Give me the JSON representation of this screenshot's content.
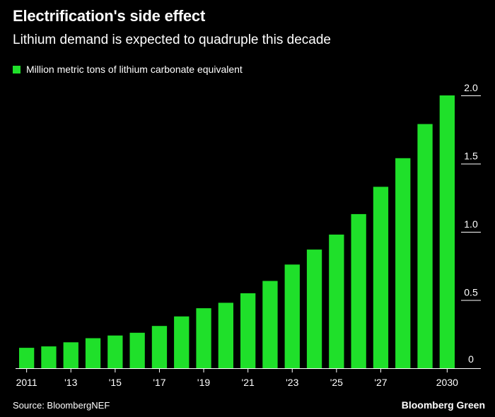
{
  "header": {
    "title": "Electrification's side effect",
    "subtitle": "Lithium demand is expected to quadruple this decade"
  },
  "footer": {
    "source": "Source: BloombergNEF",
    "brand": "Bloomberg Green"
  },
  "colors": {
    "bar": "#1fe02a",
    "background": "#000000",
    "text": "#ffffff"
  },
  "chart_data": {
    "type": "bar",
    "title": "Electrification's side effect",
    "subtitle": "Lithium demand is expected to quadruple this decade",
    "categories": [
      "2011",
      "2012",
      "2013",
      "2014",
      "2015",
      "2016",
      "2017",
      "2018",
      "2019",
      "2020",
      "2021",
      "2022",
      "2023",
      "2024",
      "2025",
      "2026",
      "2027",
      "2028",
      "2029",
      "2030"
    ],
    "tick_labels": [
      {
        "index": 0,
        "label": "2011"
      },
      {
        "index": 2,
        "label": "'13"
      },
      {
        "index": 4,
        "label": "'15"
      },
      {
        "index": 6,
        "label": "'17"
      },
      {
        "index": 8,
        "label": "'19"
      },
      {
        "index": 10,
        "label": "'21"
      },
      {
        "index": 12,
        "label": "'23"
      },
      {
        "index": 14,
        "label": "'25"
      },
      {
        "index": 16,
        "label": "'27"
      },
      {
        "index": 19,
        "label": "2030"
      }
    ],
    "series": [
      {
        "name": "Million metric tons of lithium carbonate equivalent",
        "values": [
          0.15,
          0.16,
          0.19,
          0.22,
          0.24,
          0.26,
          0.31,
          0.38,
          0.44,
          0.48,
          0.55,
          0.64,
          0.76,
          0.87,
          0.98,
          1.13,
          1.33,
          1.54,
          1.79,
          2.0
        ]
      }
    ],
    "yticks": [
      {
        "value": 0,
        "label": "0"
      },
      {
        "value": 0.5,
        "label": "0.5"
      },
      {
        "value": 1.0,
        "label": "1.0"
      },
      {
        "value": 1.5,
        "label": "1.5"
      },
      {
        "value": 2.0,
        "label": "2.0"
      }
    ],
    "ylim": [
      0,
      2.0
    ],
    "y_axis_side": "right",
    "grid": false,
    "legend_position": "top-left"
  }
}
